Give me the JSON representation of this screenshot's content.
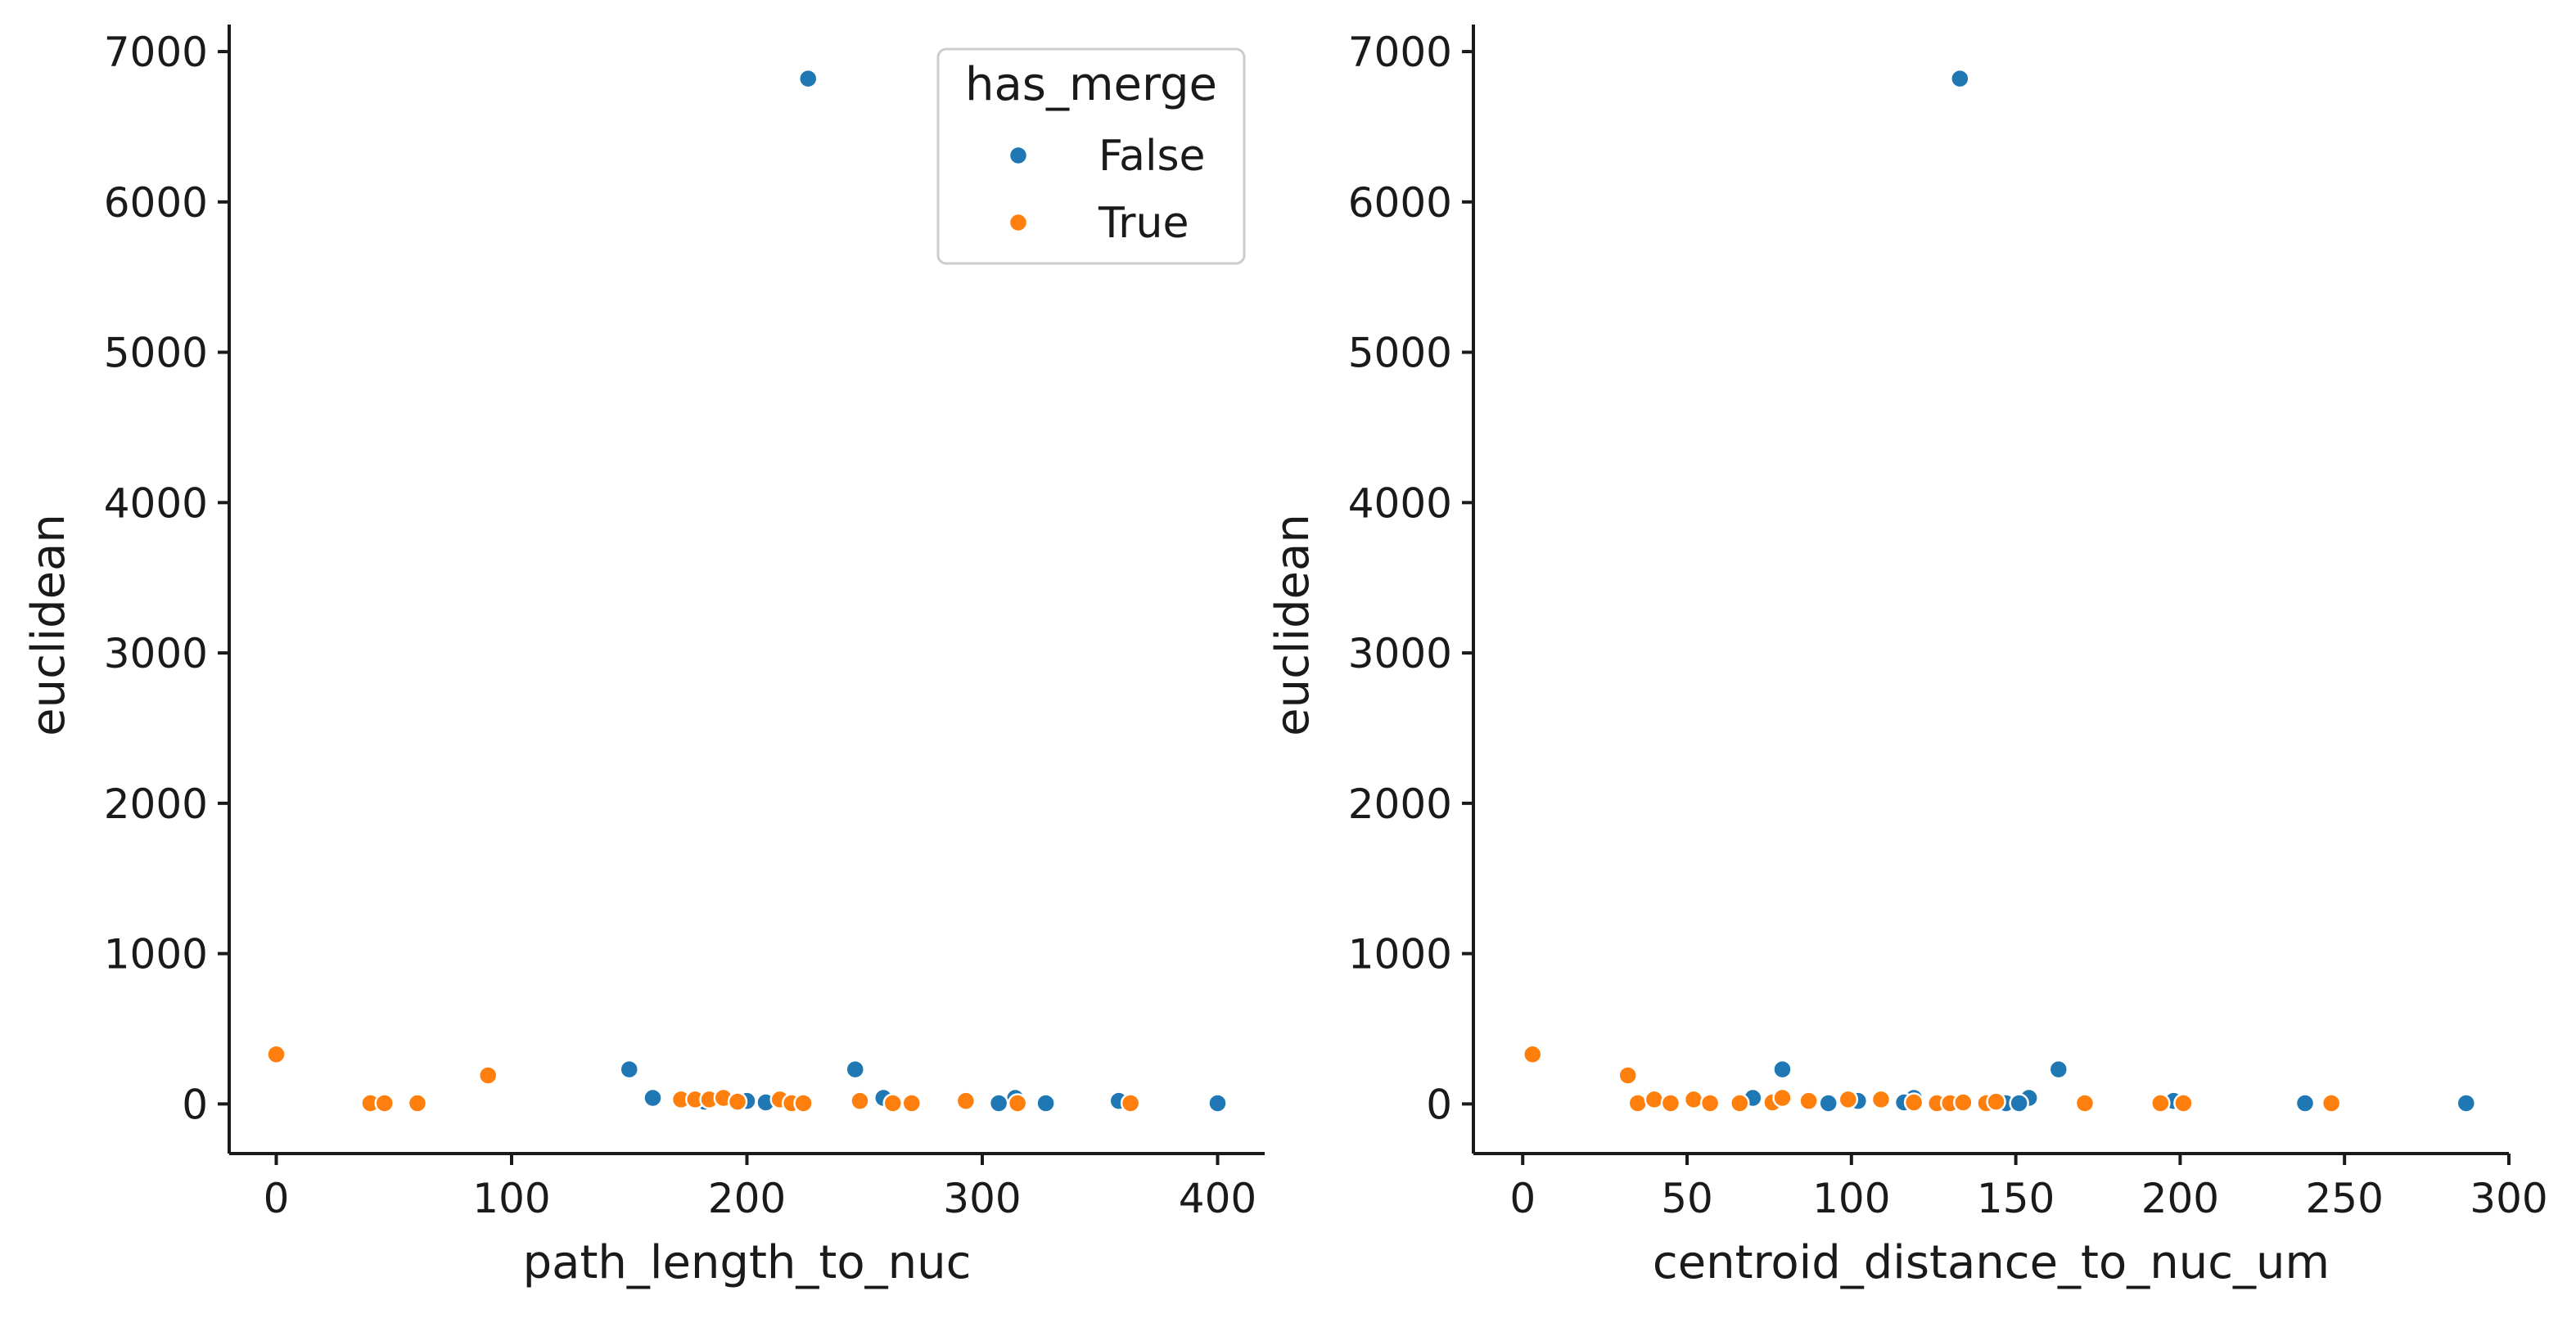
{
  "chart_data": [
    {
      "type": "scatter",
      "xlabel": "path_length_to_nuc",
      "ylabel": "euclidean",
      "xlim": [
        -20,
        420
      ],
      "ylim": [
        -330,
        7180
      ],
      "xticks": [
        0,
        100,
        200,
        300,
        400
      ],
      "yticks": [
        0,
        1000,
        2000,
        3000,
        4000,
        5000,
        6000,
        7000
      ],
      "legend": {
        "title": "has_merge",
        "entries": [
          {
            "label": "False",
            "color": "#1f77b4"
          },
          {
            "label": "True",
            "color": "#ff7f0e"
          }
        ],
        "position": "top-right"
      },
      "series": [
        {
          "name": "False",
          "color": "#1f77b4",
          "points": [
            [
              226,
              6820
            ],
            [
              150,
              230
            ],
            [
              246,
              230
            ],
            [
              160,
              40
            ],
            [
              258,
              40
            ],
            [
              200,
              20
            ],
            [
              208,
              10
            ],
            [
              314,
              40
            ],
            [
              307,
              5
            ],
            [
              327,
              5
            ],
            [
              358,
              20
            ],
            [
              400,
              5
            ],
            [
              182,
              15
            ]
          ]
        },
        {
          "name": "True",
          "color": "#ff7f0e",
          "points": [
            [
              0,
              330
            ],
            [
              90,
              190
            ],
            [
              40,
              5
            ],
            [
              46,
              5
            ],
            [
              60,
              5
            ],
            [
              172,
              30
            ],
            [
              178,
              30
            ],
            [
              184,
              30
            ],
            [
              190,
              40
            ],
            [
              196,
              15
            ],
            [
              214,
              30
            ],
            [
              219,
              5
            ],
            [
              224,
              5
            ],
            [
              248,
              20
            ],
            [
              262,
              5
            ],
            [
              270,
              5
            ],
            [
              293,
              20
            ],
            [
              315,
              5
            ],
            [
              363,
              5
            ]
          ]
        }
      ]
    },
    {
      "type": "scatter",
      "xlabel": "centroid_distance_to_nuc_um",
      "ylabel": "euclidean",
      "xlim": [
        -15,
        300
      ],
      "ylim": [
        -330,
        7180
      ],
      "xticks": [
        0,
        50,
        100,
        150,
        200,
        250,
        300
      ],
      "yticks": [
        0,
        1000,
        2000,
        3000,
        4000,
        5000,
        6000,
        7000
      ],
      "series": [
        {
          "name": "False",
          "color": "#1f77b4",
          "points": [
            [
              133,
              6820
            ],
            [
              79,
              230
            ],
            [
              163,
              230
            ],
            [
              70,
              40
            ],
            [
              119,
              40
            ],
            [
              154,
              40
            ],
            [
              93,
              5
            ],
            [
              102,
              20
            ],
            [
              116,
              10
            ],
            [
              147,
              5
            ],
            [
              151,
              5
            ],
            [
              198,
              20
            ],
            [
              238,
              5
            ],
            [
              287,
              5
            ]
          ]
        },
        {
          "name": "True",
          "color": "#ff7f0e",
          "points": [
            [
              3,
              330
            ],
            [
              32,
              190
            ],
            [
              35,
              5
            ],
            [
              40,
              30
            ],
            [
              45,
              5
            ],
            [
              52,
              30
            ],
            [
              57,
              5
            ],
            [
              66,
              5
            ],
            [
              76,
              10
            ],
            [
              79,
              40
            ],
            [
              87,
              20
            ],
            [
              99,
              30
            ],
            [
              109,
              30
            ],
            [
              119,
              10
            ],
            [
              126,
              5
            ],
            [
              130,
              5
            ],
            [
              134,
              10
            ],
            [
              141,
              5
            ],
            [
              144,
              15
            ],
            [
              171,
              5
            ],
            [
              194,
              5
            ],
            [
              201,
              5
            ],
            [
              246,
              5
            ]
          ]
        }
      ]
    }
  ]
}
